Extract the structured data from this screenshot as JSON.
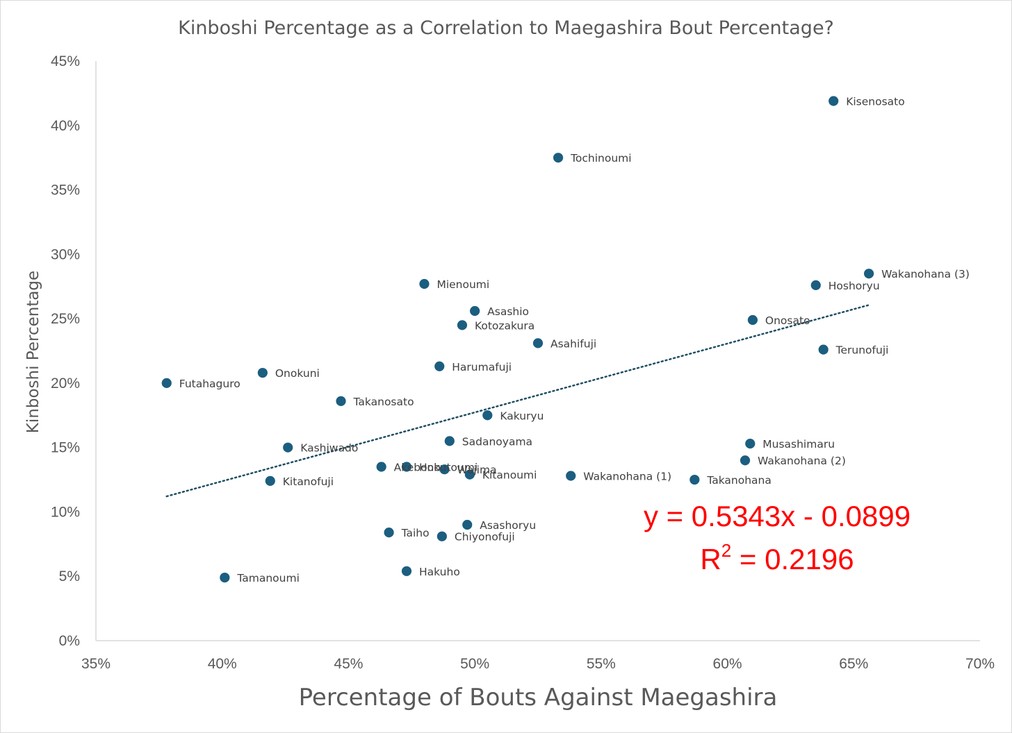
{
  "chart_data": {
    "type": "scatter",
    "title": "Kinboshi Percentage as a Correlation to Maegashira Bout Percentage?",
    "xlabel": "Percentage of Bouts Against Maegashira",
    "ylabel": "Kinboshi Percentage",
    "xlim": [
      0.35,
      0.7
    ],
    "ylim": [
      0,
      0.45
    ],
    "x_ticks": [
      "35%",
      "40%",
      "45%",
      "50%",
      "55%",
      "60%",
      "65%",
      "70%"
    ],
    "y_ticks": [
      "0%",
      "5%",
      "10%",
      "15%",
      "20%",
      "25%",
      "30%",
      "35%",
      "40%",
      "45%"
    ],
    "grid": false,
    "legend": "none",
    "marker_color": "#1b5e80",
    "trendline_color": "#1f4e63",
    "equation_color": "#ff0000",
    "points": [
      {
        "label": "Kisenosato",
        "x": 0.642,
        "y": 0.419
      },
      {
        "label": "Tochinoumi",
        "x": 0.533,
        "y": 0.375
      },
      {
        "label": "Wakanohana (3)",
        "x": 0.656,
        "y": 0.285
      },
      {
        "label": "Hoshoryu",
        "x": 0.635,
        "y": 0.276
      },
      {
        "label": "Mienoumi",
        "x": 0.48,
        "y": 0.277
      },
      {
        "label": "Asashio",
        "x": 0.5,
        "y": 0.256
      },
      {
        "label": "Kotozakura",
        "x": 0.495,
        "y": 0.245
      },
      {
        "label": "Onosato",
        "x": 0.61,
        "y": 0.249
      },
      {
        "label": "Asahifuji",
        "x": 0.525,
        "y": 0.231
      },
      {
        "label": "Terunofuji",
        "x": 0.638,
        "y": 0.226
      },
      {
        "label": "Harumafuji",
        "x": 0.486,
        "y": 0.213
      },
      {
        "label": "Onokuni",
        "x": 0.416,
        "y": 0.208
      },
      {
        "label": "Futahaguro",
        "x": 0.378,
        "y": 0.2
      },
      {
        "label": "Takanosato",
        "x": 0.447,
        "y": 0.186
      },
      {
        "label": "Kakuryu",
        "x": 0.505,
        "y": 0.175
      },
      {
        "label": "Sadanoyama",
        "x": 0.49,
        "y": 0.155
      },
      {
        "label": "Musashimaru",
        "x": 0.609,
        "y": 0.153
      },
      {
        "label": "Kashiwado",
        "x": 0.426,
        "y": 0.15
      },
      {
        "label": "Wakanohana (2)",
        "x": 0.607,
        "y": 0.14
      },
      {
        "label": "Akebono",
        "x": 0.463,
        "y": 0.135
      },
      {
        "label": "Hokutoumi",
        "x": 0.473,
        "y": 0.135
      },
      {
        "label": "Wajima",
        "x": 0.488,
        "y": 0.133
      },
      {
        "label": "Kitanoumi",
        "x": 0.498,
        "y": 0.129
      },
      {
        "label": "Wakanohana (1)",
        "x": 0.538,
        "y": 0.128
      },
      {
        "label": "Takanohana",
        "x": 0.587,
        "y": 0.125
      },
      {
        "label": "Kitanofuji",
        "x": 0.419,
        "y": 0.124
      },
      {
        "label": "Asashoryu",
        "x": 0.497,
        "y": 0.09
      },
      {
        "label": "Taiho",
        "x": 0.466,
        "y": 0.084
      },
      {
        "label": "Chiyonofuji",
        "x": 0.487,
        "y": 0.081
      },
      {
        "label": "Hakuho",
        "x": 0.473,
        "y": 0.054
      },
      {
        "label": "Tamanoumi",
        "x": 0.401,
        "y": 0.049
      }
    ],
    "trendline": {
      "style": "dotted",
      "x_start": 0.378,
      "x_end": 0.656,
      "slope": 0.5343,
      "intercept": -0.0899
    },
    "equation_text": "y = 0.5343x - 0.0899",
    "r2_prefix": "R",
    "r2_sup": "2",
    "r2_suffix": " = 0.2196"
  }
}
